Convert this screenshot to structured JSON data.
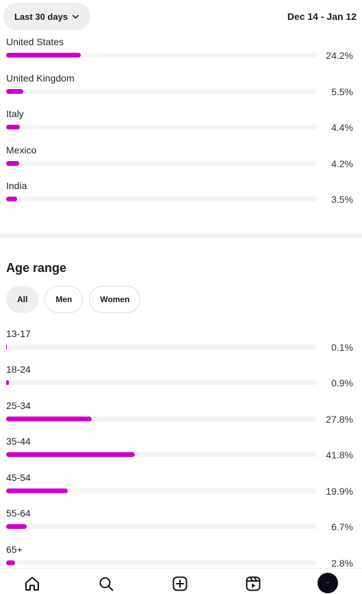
{
  "header": {
    "range_label": "Last 30 days",
    "date_range": "Dec 14 - Jan 12"
  },
  "countries": [
    {
      "label": "United States",
      "percent": 24.2,
      "percent_label": "24.2%"
    },
    {
      "label": "United Kingdom",
      "percent": 5.5,
      "percent_label": "5.5%"
    },
    {
      "label": "Italy",
      "percent": 4.4,
      "percent_label": "4.4%"
    },
    {
      "label": "Mexico",
      "percent": 4.2,
      "percent_label": "4.2%"
    },
    {
      "label": "India",
      "percent": 3.5,
      "percent_label": "3.5%"
    }
  ],
  "age_range": {
    "title": "Age range",
    "filters": [
      {
        "label": "All",
        "active": true
      },
      {
        "label": "Men",
        "active": false
      },
      {
        "label": "Women",
        "active": false
      }
    ],
    "rows": [
      {
        "label": "13-17",
        "percent": 0.1,
        "percent_label": "0.1%"
      },
      {
        "label": "18-24",
        "percent": 0.9,
        "percent_label": "0.9%"
      },
      {
        "label": "25-34",
        "percent": 27.8,
        "percent_label": "27.8%"
      },
      {
        "label": "35-44",
        "percent": 41.8,
        "percent_label": "41.8%"
      },
      {
        "label": "45-54",
        "percent": 19.9,
        "percent_label": "19.9%"
      },
      {
        "label": "55-64",
        "percent": 6.7,
        "percent_label": "6.7%"
      },
      {
        "label": "65+",
        "percent": 2.8,
        "percent_label": "2.8%"
      }
    ]
  },
  "colors": {
    "bar_fill": "#d000c9",
    "bar_track": "#f4f4f4"
  },
  "nav": {
    "items": [
      "home-icon",
      "search-icon",
      "create-icon",
      "reels-icon",
      "profile-avatar"
    ]
  }
}
